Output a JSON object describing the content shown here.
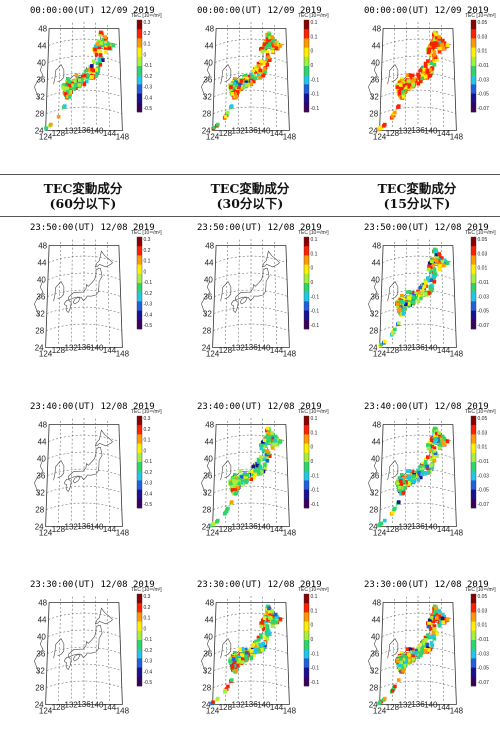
{
  "headers": [
    {
      "line1": "TEC変動成分",
      "line2": "(60分以下)"
    },
    {
      "line1": "TEC変動成分",
      "line2": "(30分以下)"
    },
    {
      "line1": "TEC変動成分",
      "line2": "(15分以下)"
    }
  ],
  "colorbar": {
    "title": "TEC [10¹⁶/m²]",
    "ticks_60min": [
      "0.3",
      "0.2",
      "0.1",
      "0",
      "-0.1",
      "-0.2",
      "-0.3",
      "-0.4",
      "-0.5"
    ],
    "ticks_30min": [
      "0.1",
      "0.1",
      "0",
      "0",
      "-0.1",
      "-0.1",
      "-0.1"
    ],
    "ticks_15min": [
      "0.05",
      "0.03",
      "0.01",
      "-0.01",
      "-0.03",
      "-0.05",
      "-0.07"
    ],
    "colors": [
      "#8a0000",
      "#ff2000",
      "#ff9a00",
      "#ffee00",
      "#a6f03a",
      "#2fd46a",
      "#20c8e8",
      "#2060e0",
      "#1a1090",
      "#3a0060"
    ]
  },
  "axes": {
    "lat_labels": [
      "48",
      "44",
      "40",
      "36",
      "32",
      "28",
      "24"
    ],
    "lon_labels": [
      "124",
      "128",
      "132",
      "136",
      "140",
      "144",
      "148"
    ]
  },
  "rows": [
    {
      "timestamp": "00:00:00(UT)  12/09 2019",
      "fill": [
        0.55,
        0.8,
        0.95
      ],
      "warm": [
        0.25,
        0.55,
        0.85
      ]
    },
    {
      "timestamp": "23:50:00(UT)  12/08 2019",
      "fill": [
        0.0,
        0.0,
        0.8
      ],
      "warm": [
        0.0,
        0.0,
        0.3
      ]
    },
    {
      "timestamp": "23:40:00(UT)  12/08 2019",
      "fill": [
        0.0,
        0.88,
        0.88
      ],
      "warm": [
        0.0,
        0.12,
        0.3
      ]
    },
    {
      "timestamp": "23:30:00(UT)  12/08 2019",
      "fill": [
        0.0,
        0.92,
        0.92
      ],
      "warm": [
        0.0,
        0.35,
        0.4
      ]
    }
  ]
}
